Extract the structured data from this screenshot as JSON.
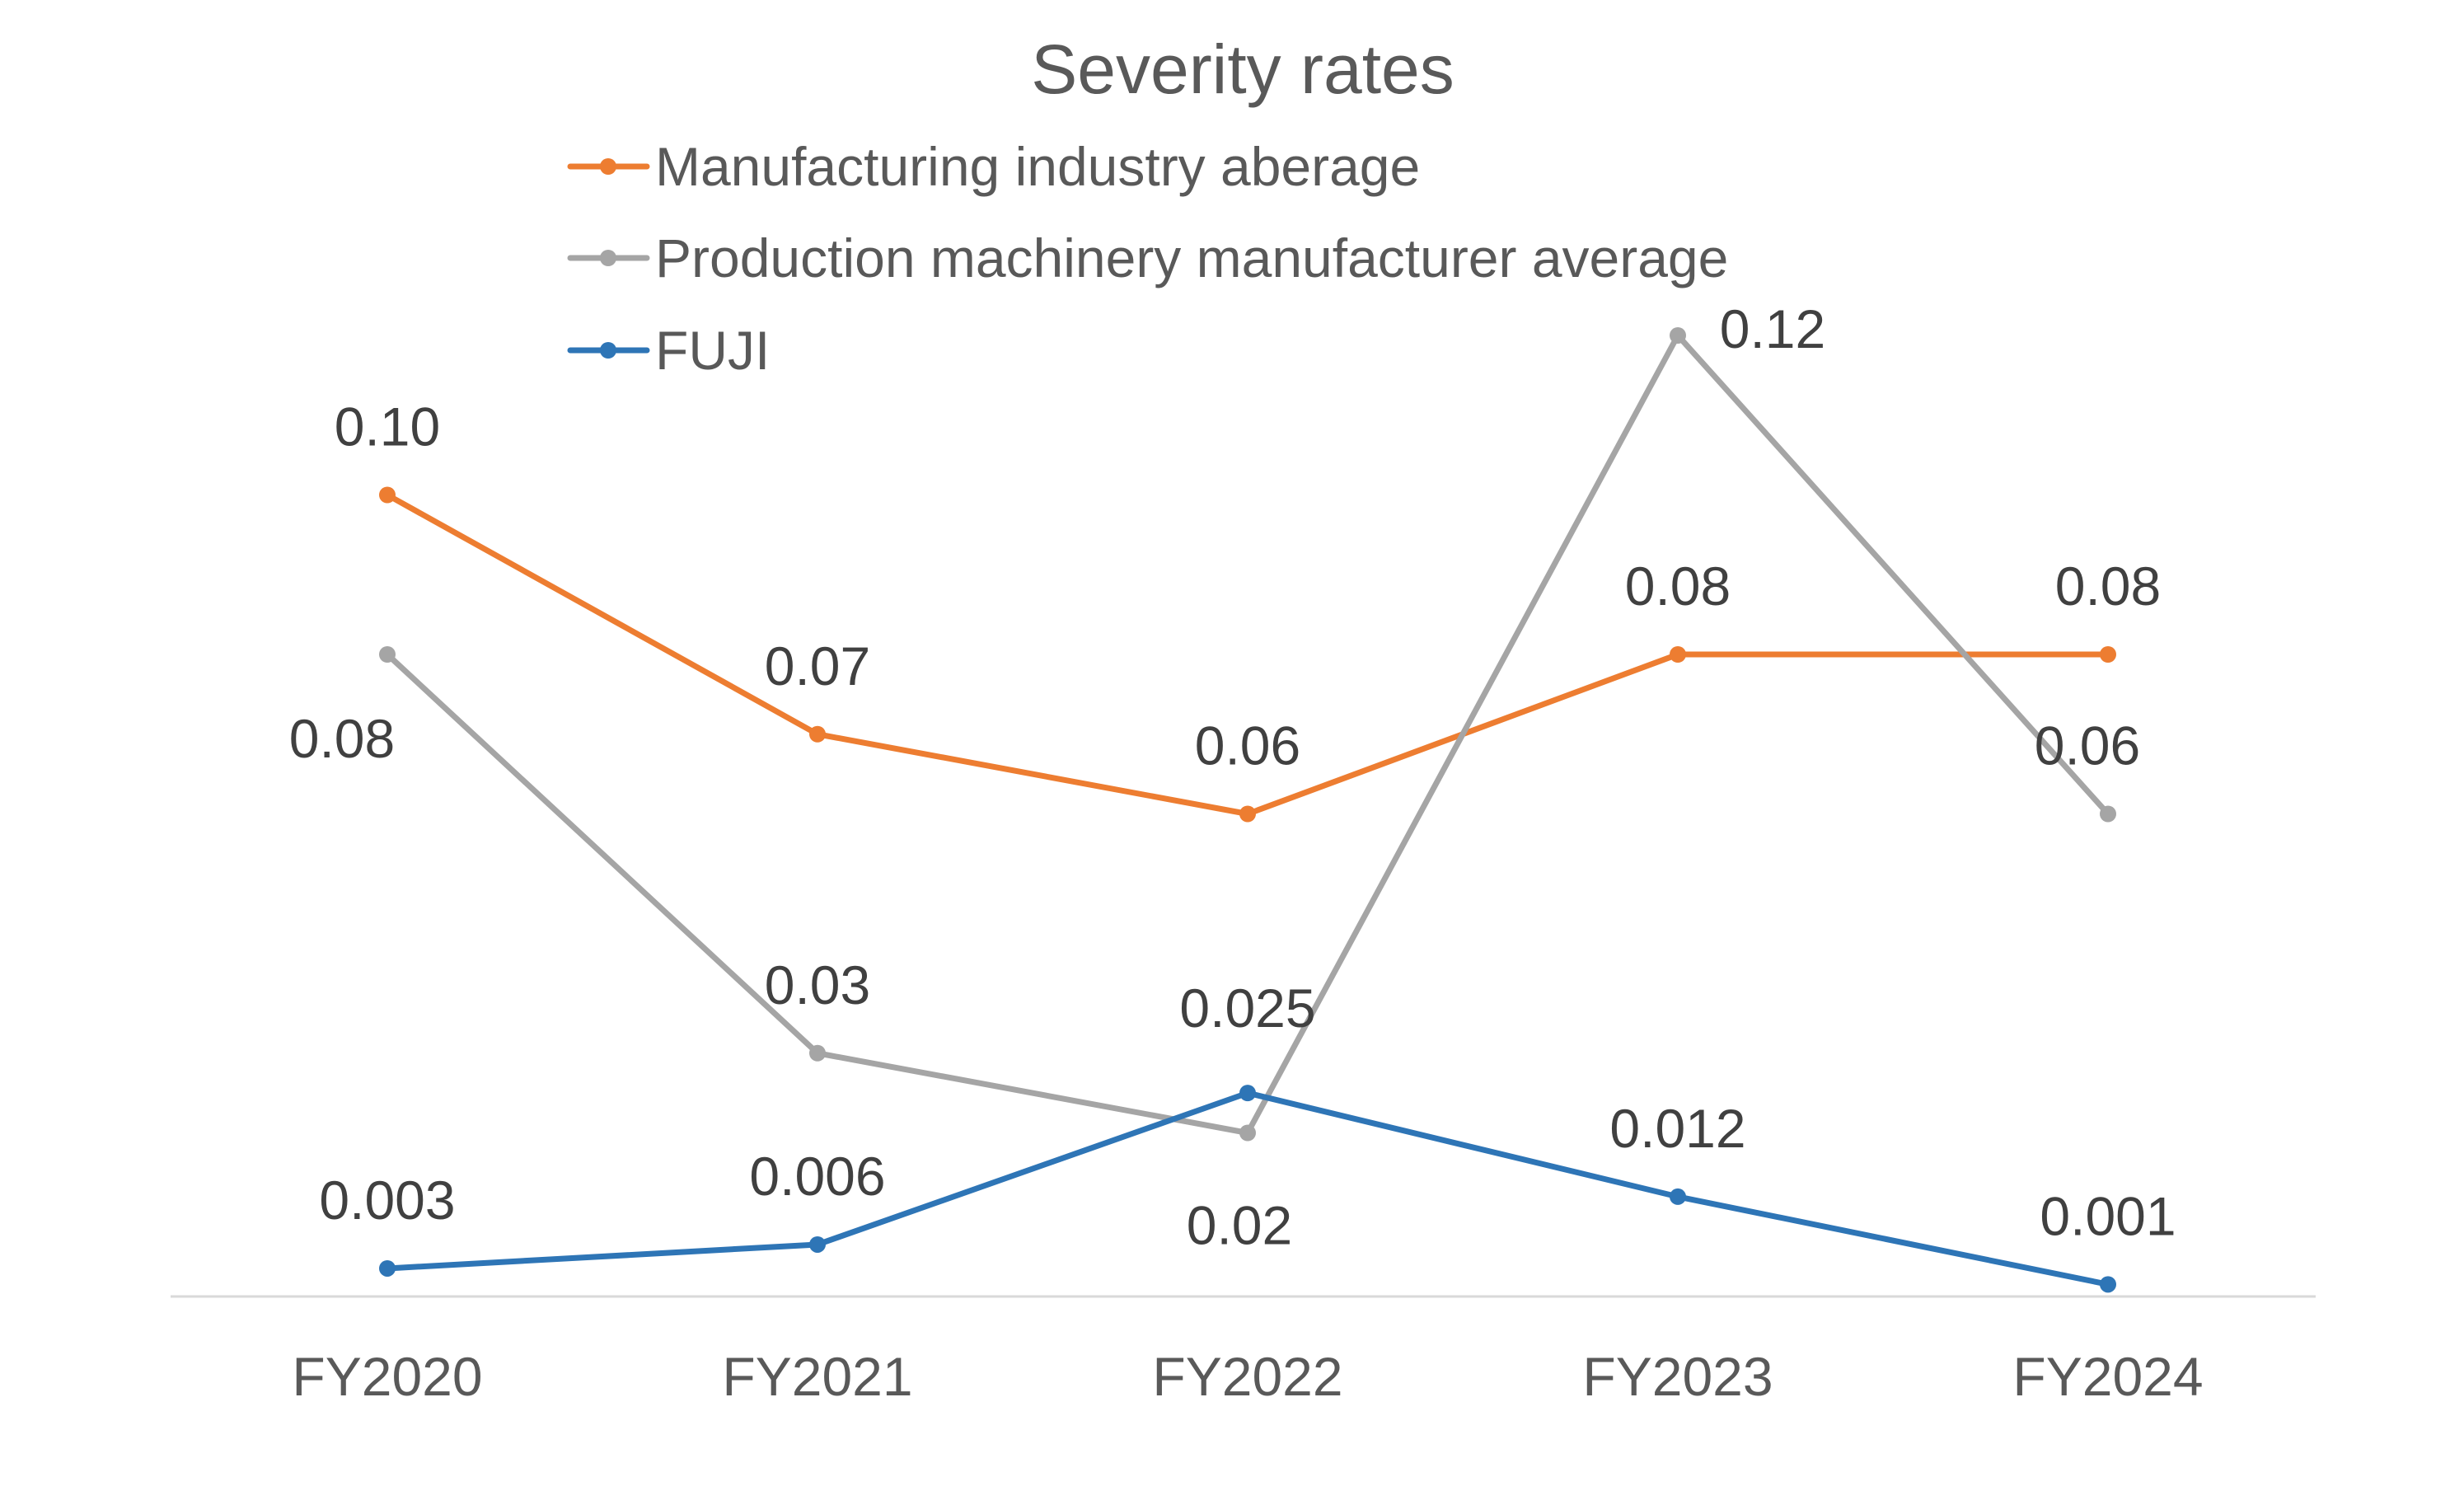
{
  "chart_data": {
    "type": "line",
    "title": "Severity rates",
    "xlabel": "",
    "ylabel": "",
    "ylim": [
      0,
      0.12
    ],
    "categories": [
      "FY2020",
      "FY2021",
      "FY2022",
      "FY2023",
      "FY2024"
    ],
    "grid": false,
    "legend_position": "top",
    "series": [
      {
        "name": "Manufacturing industry aberage",
        "color": "#ED7D31",
        "values": [
          0.1,
          0.07,
          0.06,
          0.08,
          0.08
        ],
        "labels": [
          "0.10",
          "0.07",
          "0.06",
          "0.08",
          "0.08"
        ]
      },
      {
        "name": "Production machinery manufacturer average",
        "color": "#A5A5A5",
        "values": [
          0.08,
          0.03,
          0.02,
          0.12,
          0.06
        ],
        "labels": [
          "0.08",
          "0.03",
          "0.02",
          "0.12",
          "0.06"
        ]
      },
      {
        "name": "FUJI",
        "color": "#2E75B6",
        "values": [
          0.003,
          0.006,
          0.025,
          0.012,
          0.001
        ],
        "labels": [
          "0.003",
          "0.006",
          "0.025",
          "0.012",
          "0.001"
        ]
      }
    ]
  }
}
